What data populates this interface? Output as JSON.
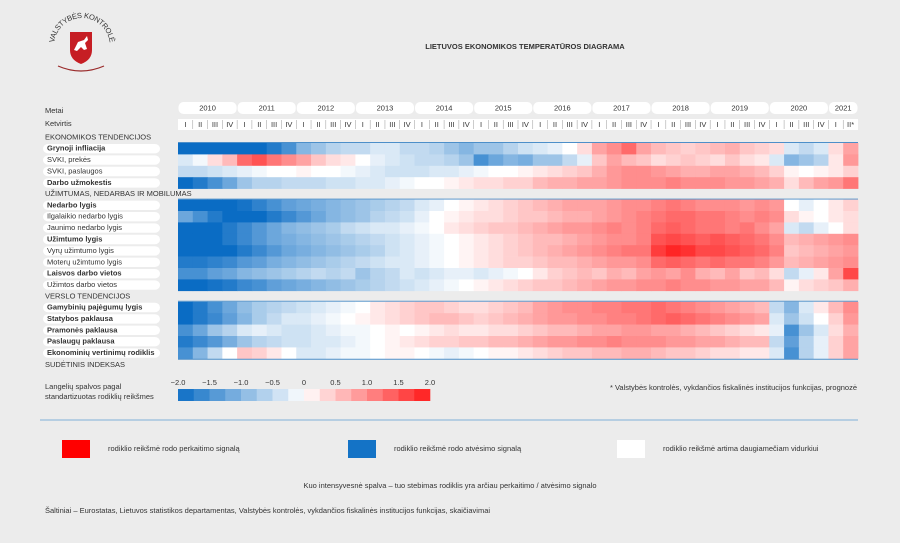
{
  "chart_data": {
    "type": "heatmap",
    "logo_text": "VALSTYBĖS KONTROLĖ",
    "title": "LIETUVOS EKONOMIKOS TEMPERATŪROS DIAGRAMA",
    "year_header": "Metai",
    "quarter_header": "Ketvirtis",
    "years": [
      "2010",
      "2011",
      "2012",
      "2013",
      "2014",
      "2015",
      "2016",
      "2017",
      "2018",
      "2019",
      "2020",
      "2021"
    ],
    "quarters": [
      "I",
      "II",
      "III",
      "IV",
      "I",
      "II",
      "III",
      "IV",
      "I",
      "II",
      "III",
      "IV",
      "I",
      "II",
      "III",
      "IV",
      "I",
      "II",
      "III",
      "IV",
      "I",
      "II",
      "III",
      "IV",
      "I",
      "II",
      "III",
      "IV",
      "I",
      "II",
      "III",
      "IV",
      "I",
      "II",
      "III",
      "IV",
      "I",
      "II",
      "III",
      "IV",
      "I",
      "II",
      "III",
      "IV",
      "I",
      "II*"
    ],
    "colors": {
      "low": "#0a6cc4",
      "mid": "#ffffff",
      "high": "#ff1a1a"
    },
    "sections": [
      {
        "title": "EKONOMIKOS TENDENCIJOS",
        "rows": [
          {
            "name": "Grynoji infliacija",
            "bold": true,
            "values": [
              -2,
              -2,
              -2,
              -2,
              -2,
              -2,
              -1.8,
              -1.5,
              -1,
              -0.8,
              -0.6,
              -0.5,
              -0.5,
              -0.3,
              -0.3,
              -0.5,
              -0.5,
              -0.6,
              -0.8,
              -1,
              -0.8,
              -0.8,
              -0.6,
              -0.4,
              -0.3,
              -0.2,
              0,
              0.3,
              0.8,
              1,
              1.3,
              0.8,
              0.6,
              0.5,
              0.4,
              0.5,
              0.6,
              0.7,
              0.5,
              0.4,
              0.3,
              -0.3,
              -0.5,
              -0.3,
              0.3,
              0.8
            ]
          },
          {
            "name": "SVKI, prekės",
            "bold": false,
            "values": [
              -0.3,
              -0.1,
              0.3,
              0.6,
              1.3,
              1.5,
              1.2,
              1,
              0.8,
              0.5,
              0.3,
              0.2,
              0,
              -0.2,
              -0.3,
              -0.4,
              -0.5,
              -0.5,
              -0.6,
              -0.8,
              -1.5,
              -1.2,
              -1,
              -1.1,
              -0.8,
              -0.8,
              -0.5,
              -0.2,
              0.5,
              0.8,
              0.6,
              0.5,
              0.3,
              0.4,
              0.5,
              0.4,
              0.3,
              0.5,
              0.3,
              0.2,
              -0.3,
              -1,
              -0.8,
              -0.6,
              0.2,
              0.9
            ]
          },
          {
            "name": "SVKI, paslaugos",
            "bold": false,
            "values": [
              -0.5,
              -0.5,
              -0.4,
              -0.3,
              -0.2,
              -0.1,
              0,
              0,
              0.1,
              0,
              0,
              -0.1,
              -0.2,
              -0.3,
              -0.4,
              -0.4,
              -0.4,
              -0.3,
              -0.3,
              -0.2,
              -0.1,
              0,
              0,
              0.1,
              0.2,
              0.3,
              0.4,
              0.5,
              0.7,
              0.9,
              1,
              1,
              0.9,
              0.8,
              0.7,
              0.7,
              0.8,
              0.8,
              0.7,
              0.6,
              0.4,
              0.1,
              0,
              0.1,
              0.2,
              0.4
            ]
          },
          {
            "name": "Darbo užmokestis",
            "bold": true,
            "values": [
              -2,
              -1.8,
              -1.5,
              -1.2,
              -0.8,
              -0.6,
              -0.6,
              -0.5,
              -0.5,
              -0.5,
              -0.4,
              -0.4,
              -0.3,
              -0.3,
              -0.2,
              -0.1,
              0,
              0,
              0.1,
              0.2,
              0.3,
              0.3,
              0.4,
              0.4,
              0.6,
              0.7,
              0.7,
              0.8,
              0.8,
              0.9,
              1,
              1,
              1,
              1.1,
              1,
              1,
              1,
              0.9,
              0.9,
              0.8,
              0.7,
              0.3,
              0.6,
              0.8,
              0.9,
              1.2
            ]
          }
        ]
      },
      {
        "title": "UŽIMTUMAS, NEDARBAS IR MOBILUMAS",
        "rows": [
          {
            "name": "Nedarbo lygis",
            "bold": true,
            "values": [
              -2,
              -2,
              -2,
              -2,
              -1.9,
              -1.7,
              -1.5,
              -1.3,
              -1.2,
              -1.1,
              -1,
              -0.9,
              -0.8,
              -0.7,
              -0.6,
              -0.5,
              -0.3,
              -0.2,
              0,
              0.1,
              0.2,
              0.3,
              0.4,
              0.5,
              0.6,
              0.7,
              0.8,
              0.8,
              0.8,
              0.9,
              1,
              1,
              1.1,
              1.2,
              1.1,
              1,
              1,
              1,
              0.9,
              1,
              0.9,
              0,
              -0.2,
              0,
              0.2,
              0.4
            ]
          },
          {
            "name": "Ilgalaikio nedarbo lygis",
            "bold": false,
            "values": [
              -1.2,
              -1.5,
              -1.8,
              -2,
              -2,
              -2,
              -1.8,
              -1.6,
              -1.4,
              -1.2,
              -1,
              -0.9,
              -0.8,
              -0.6,
              -0.5,
              -0.4,
              -0.2,
              0,
              0.1,
              0.2,
              0.3,
              0.3,
              0.4,
              0.5,
              0.5,
              0.6,
              0.7,
              0.7,
              0.8,
              0.9,
              1,
              1.1,
              1.2,
              1.3,
              1.3,
              1.2,
              1.2,
              1.1,
              1,
              1.1,
              1,
              0.3,
              0.1,
              0,
              0.2,
              0.3
            ]
          },
          {
            "name": "Jaunimo nedarbo lygis",
            "bold": false,
            "values": [
              -2,
              -2,
              -2,
              -1.8,
              -1.6,
              -1.4,
              -1.2,
              -1,
              -0.9,
              -0.8,
              -0.7,
              -0.5,
              -0.4,
              -0.3,
              -0.3,
              -0.2,
              -0.1,
              0,
              0.2,
              0.3,
              0.4,
              0.5,
              0.5,
              0.6,
              0.7,
              0.8,
              0.9,
              0.9,
              1,
              1.1,
              1,
              1.1,
              1.3,
              1.4,
              1.3,
              1.2,
              1.2,
              1.1,
              1.2,
              1,
              0.8,
              -0.3,
              -0.5,
              -0.2,
              0,
              0.3
            ]
          },
          {
            "name": "Užimtumo lygis",
            "bold": true,
            "values": [
              -2,
              -2,
              -2,
              -1.8,
              -1.6,
              -1.4,
              -1.2,
              -1.1,
              -1,
              -0.9,
              -0.8,
              -0.7,
              -0.6,
              -0.5,
              -0.4,
              -0.3,
              -0.2,
              -0.1,
              0,
              0.1,
              0.2,
              0.3,
              0.4,
              0.5,
              0.6,
              0.6,
              0.7,
              0.8,
              0.9,
              1,
              1,
              1.1,
              1.5,
              1.6,
              1.5,
              1.4,
              1.5,
              1.4,
              1.3,
              1.2,
              1,
              0.6,
              0.7,
              0.8,
              0.9,
              1
            ]
          },
          {
            "name": "Vyrų užimtumo lygis",
            "bold": false,
            "values": [
              -2,
              -2,
              -2,
              -2,
              -1.8,
              -1.6,
              -1.4,
              -1.2,
              -1.1,
              -1,
              -0.9,
              -0.8,
              -0.7,
              -0.6,
              -0.4,
              -0.3,
              -0.2,
              -0.1,
              0,
              0.1,
              0.2,
              0.3,
              0.4,
              0.5,
              0.6,
              0.7,
              0.8,
              0.9,
              1,
              1.1,
              1.2,
              1.2,
              1.7,
              1.9,
              1.8,
              1.6,
              1.6,
              1.5,
              1.4,
              1.3,
              1.1,
              0.5,
              0.6,
              0.7,
              0.8,
              0.9
            ]
          },
          {
            "name": "Moterų užimtumo lygis",
            "bold": false,
            "values": [
              -1.8,
              -1.8,
              -1.7,
              -1.6,
              -1.4,
              -1.3,
              -1.1,
              -1,
              -0.9,
              -0.8,
              -0.7,
              -0.6,
              -0.5,
              -0.4,
              -0.3,
              -0.3,
              -0.2,
              -0.1,
              0,
              0.1,
              0.2,
              0.3,
              0.4,
              0.4,
              0.5,
              0.6,
              0.6,
              0.7,
              0.8,
              0.9,
              0.9,
              1,
              1.3,
              1.4,
              1.3,
              1.2,
              1.3,
              1.2,
              1.2,
              1.1,
              0.9,
              0.6,
              0.7,
              0.8,
              0.9,
              1
            ]
          },
          {
            "name": "Laisvos darbo vietos",
            "bold": true,
            "values": [
              -1.5,
              -1.5,
              -1.3,
              -1.2,
              -1,
              -0.9,
              -0.8,
              -0.7,
              -0.6,
              -0.5,
              -0.6,
              -0.5,
              -0.8,
              -0.6,
              -0.5,
              -0.3,
              -0.4,
              -0.3,
              -0.2,
              -0.2,
              -0.3,
              -0.2,
              -0.1,
              0,
              0.2,
              0.4,
              0.5,
              0.6,
              0.5,
              0.7,
              0.6,
              0.8,
              0.9,
              0.8,
              1,
              0.7,
              0.6,
              0.8,
              0.5,
              0.6,
              0.3,
              -0.5,
              -0.2,
              0.2,
              0.8,
              1.6
            ]
          },
          {
            "name": "Užimtos darbo vietos",
            "bold": false,
            "values": [
              -2,
              -2,
              -1.9,
              -1.8,
              -1.6,
              -1.5,
              -1.3,
              -1.2,
              -1.1,
              -1,
              -0.9,
              -0.8,
              -0.7,
              -0.6,
              -0.5,
              -0.4,
              -0.3,
              -0.2,
              -0.1,
              0,
              0.1,
              0.2,
              0.3,
              0.4,
              0.5,
              0.5,
              0.6,
              0.7,
              0.8,
              0.9,
              0.9,
              1,
              1,
              1.1,
              1,
              1,
              0.9,
              0.9,
              0.8,
              0.8,
              0.6,
              0.1,
              0.3,
              0.4,
              0.5,
              0.7
            ]
          }
        ]
      },
      {
        "title": "VERSLO TENDENCIJOS",
        "rows": [
          {
            "name": "Gamybinių pajėgumų lygis",
            "bold": true,
            "values": [
              -2,
              -1.8,
              -1.5,
              -1.2,
              -0.9,
              -0.7,
              -0.6,
              -0.5,
              -0.4,
              -0.3,
              -0.2,
              -0.1,
              0,
              0.2,
              0.3,
              0.4,
              0.5,
              0.5,
              0.4,
              0.3,
              0.3,
              0.4,
              0.5,
              0.6,
              0.8,
              0.9,
              1,
              1,
              1.1,
              1.1,
              1.2,
              1.2,
              1.3,
              1.2,
              1.1,
              1,
              0.9,
              0.8,
              0.7,
              0.6,
              -0.5,
              -1,
              -0.3,
              0.2,
              0.6,
              1
            ]
          },
          {
            "name": "Statybos paklausa",
            "bold": true,
            "values": [
              -2,
              -1.8,
              -1.6,
              -1.3,
              -1,
              -0.7,
              -0.5,
              -0.3,
              -0.3,
              -0.2,
              -0.1,
              0,
              0.1,
              0.2,
              0.3,
              0.4,
              0.5,
              0.6,
              0.6,
              0.5,
              0.4,
              0.5,
              0.6,
              0.7,
              0.8,
              0.9,
              0.9,
              1,
              1,
              1.1,
              1.1,
              1.2,
              1.3,
              1.4,
              1.3,
              1.2,
              1.1,
              1,
              0.9,
              0.8,
              -0.3,
              -0.8,
              -0.4,
              0,
              0.4,
              0.9
            ]
          },
          {
            "name": "Pramonės paklausa",
            "bold": true,
            "values": [
              -1.5,
              -1.2,
              -0.8,
              -0.6,
              -0.3,
              -0.2,
              -0.3,
              -0.4,
              -0.4,
              -0.3,
              -0.2,
              -0.1,
              -0.1,
              0,
              0.1,
              0,
              0.1,
              0.2,
              0.3,
              0.2,
              0.2,
              0.3,
              0.3,
              0.4,
              0.5,
              0.6,
              0.6,
              0.7,
              0.8,
              0.8,
              0.9,
              0.9,
              0.8,
              0.8,
              0.7,
              0.6,
              0.5,
              0.4,
              0.3,
              0.2,
              -0.2,
              -1.5,
              -0.8,
              -0.3,
              0.3,
              0.7
            ]
          },
          {
            "name": "Paslaugų paklausa",
            "bold": true,
            "values": [
              -1.8,
              -1.6,
              -1.4,
              -1.1,
              -0.8,
              -0.6,
              -0.5,
              -0.4,
              -0.4,
              -0.3,
              -0.3,
              -0.2,
              -0.1,
              0,
              0.1,
              0.2,
              0.3,
              0.4,
              0.4,
              0.5,
              0.5,
              0.6,
              0.6,
              0.7,
              0.8,
              0.9,
              0.9,
              1,
              1,
              1.1,
              1,
              1,
              1,
              0.9,
              0.9,
              0.8,
              0.8,
              0.7,
              0.6,
              0.6,
              -0.5,
              -1.3,
              -0.6,
              -0.2,
              0.4,
              0.8
            ]
          },
          {
            "name": "Ekonominių vertinimų rodiklis",
            "bold": true,
            "values": [
              -1.5,
              -1,
              -0.5,
              0,
              0.5,
              0.4,
              0.2,
              0,
              -0.3,
              -0.3,
              -0.2,
              -0.1,
              -0.1,
              0,
              0.1,
              0.1,
              0,
              -0.1,
              -0.2,
              -0.1,
              0,
              0.1,
              0.1,
              0.2,
              0.3,
              0.4,
              0.5,
              0.5,
              0.6,
              0.6,
              0.7,
              0.7,
              0.6,
              0.5,
              0.5,
              0.4,
              0.3,
              0.3,
              0.2,
              0.2,
              -0.3,
              -1.5,
              -0.6,
              -0.2,
              0.4,
              0.8
            ]
          }
        ]
      }
    ],
    "footer_section": "SUDĖTINIS INDEKSAS",
    "colorbar": {
      "caption": [
        "Langelių spalvos pagal",
        "standartizuotas rodiklių reikšmes"
      ],
      "lim": [
        -2,
        2
      ],
      "ticks": [
        {
          "value": -2,
          "label": "−2.0"
        },
        {
          "value": -1.5,
          "label": "−1.5"
        },
        {
          "value": -1,
          "label": "−1.0"
        },
        {
          "value": -0.5,
          "label": "−0.5"
        },
        0,
        0.5,
        {
          "value": 1,
          "label": "1.0"
        },
        1.5,
        {
          "value": 2,
          "label": "2.0"
        }
      ]
    },
    "footnote": "* Valstybės kontrolės, vykdančios fiskalinės institucijos funkcijas, prognozė",
    "legend": [
      {
        "color": "#ff0000",
        "label": "rodiklio reikšmė rodo perkaitimo signalą"
      },
      {
        "color": "#1473c6",
        "label": "rodiklio reikšmė rodo atvėsimo signalą"
      },
      {
        "color": "#ffffff",
        "label": "rodiklio reikšmė artima daugiamečiam vidurkiui"
      }
    ],
    "note": "Kuo intensyvesnė spalva – tuo stebimas rodiklis yra arčiau perkaitimo / atvėsimo signalo",
    "sources": "Šaltiniai – Eurostatas, Lietuvos statistikos departamentas, Valstybės kontrolės, vykdančios fiskalinės institucijos funkcijas, skaičiavimai"
  }
}
